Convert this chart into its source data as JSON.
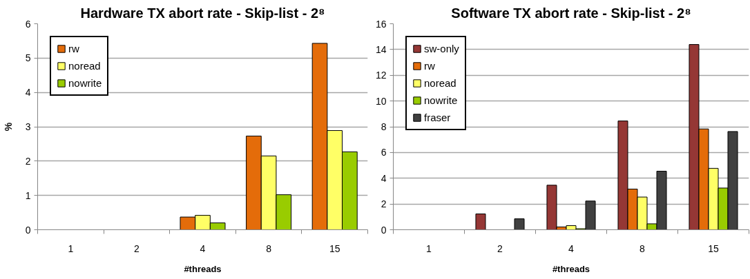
{
  "chart_data": [
    {
      "type": "bar",
      "title": "Hardware TX abort rate - Skip-list - 2⁸",
      "xlabel": "#threads",
      "ylabel": "%",
      "categories": [
        "1",
        "2",
        "4",
        "8",
        "15"
      ],
      "series": [
        {
          "name": "rw",
          "color": "#e46c0a",
          "values": [
            null,
            null,
            0.37,
            2.73,
            5.43
          ]
        },
        {
          "name": "noread",
          "color": "#ffff66",
          "values": [
            null,
            null,
            0.42,
            2.15,
            2.89
          ]
        },
        {
          "name": "nowrite",
          "color": "#99cc00",
          "values": [
            null,
            null,
            0.2,
            1.02,
            2.27
          ]
        }
      ],
      "ylim": [
        0,
        6
      ],
      "yticks": [
        0,
        1,
        2,
        3,
        4,
        5,
        6
      ],
      "grid": "y",
      "legend": "top left"
    },
    {
      "type": "bar",
      "title": "Software TX abort rate - Skip-list - 2⁸",
      "xlabel": "#threads",
      "categories": [
        "1",
        "2",
        "4",
        "8",
        "15"
      ],
      "series": [
        {
          "name": "sw-only",
          "color": "#953735",
          "values": [
            null,
            1.23,
            3.46,
            8.45,
            14.39
          ]
        },
        {
          "name": "rw",
          "color": "#e46c0a",
          "values": [
            null,
            null,
            0.22,
            3.16,
            7.83
          ]
        },
        {
          "name": "noread",
          "color": "#ffff66",
          "values": [
            null,
            null,
            0.32,
            2.54,
            4.77
          ]
        },
        {
          "name": "nowrite",
          "color": "#99cc00",
          "values": [
            null,
            null,
            0.08,
            0.46,
            3.24
          ]
        },
        {
          "name": "fraser",
          "color": "#404040",
          "values": [
            null,
            0.85,
            2.23,
            4.55,
            7.63
          ]
        }
      ],
      "ylim": [
        0,
        16
      ],
      "yticks": [
        0,
        2,
        4,
        6,
        8,
        10,
        12,
        14,
        16
      ],
      "grid": "y",
      "legend": "top left"
    }
  ]
}
